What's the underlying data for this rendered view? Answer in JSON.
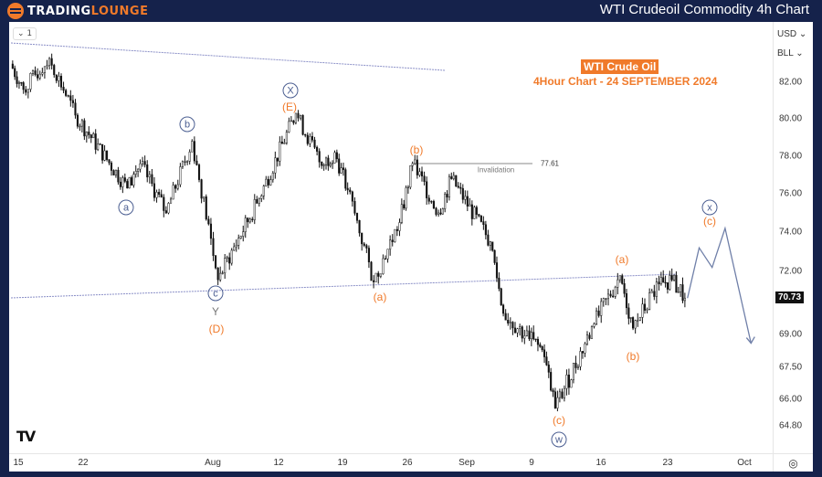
{
  "header": {
    "brand_part1": "TRADING",
    "brand_part2": "LOUNGE",
    "title": "WTI Crudeoil Commodity 4h Chart"
  },
  "toolbar": {
    "interval": "1",
    "currency": "USD",
    "unit": "BLL",
    "settings_icon": "gear-icon"
  },
  "chart_data": {
    "type": "candlestick",
    "title": "WTI Crude Oil",
    "subtitle": "4Hour Chart - 24 SEPTEMBER 2024",
    "last_price": "70.73",
    "y_ticks": [
      "82.00",
      "80.00",
      "78.00",
      "76.00",
      "74.00",
      "72.00",
      "69.00",
      "67.50",
      "66.00",
      "64.80"
    ],
    "x_ticks": [
      "15",
      "22",
      "Aug",
      "12",
      "19",
      "26",
      "Sep",
      "9",
      "16",
      "23",
      "Oct"
    ],
    "price_path_pivots": [
      {
        "date": "2024-07-12",
        "price": 83.0
      },
      {
        "date": "2024-07-15",
        "price": 81.6
      },
      {
        "date": "2024-07-17",
        "price": 83.3
      },
      {
        "date": "2024-07-19",
        "price": 80.2
      },
      {
        "date": "2024-07-25",
        "price": 76.3
      },
      {
        "date": "2024-07-26",
        "price": 77.6
      },
      {
        "date": "2024-07-30",
        "price": 75.0
      },
      {
        "date": "2024-08-01",
        "price": 78.8
      },
      {
        "date": "2024-08-05",
        "price": 71.6
      },
      {
        "date": "2024-08-08",
        "price": 75.5
      },
      {
        "date": "2024-08-13",
        "price": 80.3
      },
      {
        "date": "2024-08-15",
        "price": 77.5
      },
      {
        "date": "2024-08-16",
        "price": 78.2
      },
      {
        "date": "2024-08-19",
        "price": 76.2
      },
      {
        "date": "2024-08-21",
        "price": 71.5
      },
      {
        "date": "2024-08-23",
        "price": 74.5
      },
      {
        "date": "2024-08-26",
        "price": 77.61
      },
      {
        "date": "2024-08-28",
        "price": 75.0
      },
      {
        "date": "2024-08-29",
        "price": 76.8
      },
      {
        "date": "2024-09-03",
        "price": 73.5
      },
      {
        "date": "2024-09-04",
        "price": 70.0
      },
      {
        "date": "2024-09-06",
        "price": 68.8
      },
      {
        "date": "2024-09-09",
        "price": 68.3
      },
      {
        "date": "2024-09-10",
        "price": 65.6
      },
      {
        "date": "2024-09-13",
        "price": 69.5
      },
      {
        "date": "2024-09-17",
        "price": 71.8
      },
      {
        "date": "2024-09-18",
        "price": 69.3
      },
      {
        "date": "2024-09-20",
        "price": 71.4
      },
      {
        "date": "2024-09-23",
        "price": 71.6
      },
      {
        "date": "2024-09-24",
        "price": 70.73
      }
    ],
    "projection": [
      {
        "date": "2024-09-24",
        "price": 70.73
      },
      {
        "date": "2024-09-25",
        "price": 73.2
      },
      {
        "date": "2024-09-26",
        "price": 72.2
      },
      {
        "date": "2024-09-27",
        "price": 74.2
      },
      {
        "date": "2024-10-01",
        "price": 68.6
      }
    ],
    "invalidation": {
      "label": "Invalidation",
      "price": "77.61"
    },
    "wave_labels": [
      "X",
      "(E)",
      "b",
      "a",
      "c",
      "Y",
      "(D)",
      "(b)",
      "(a)",
      "(a)",
      "(b)",
      "(c)",
      "w",
      "x",
      "(c)"
    ],
    "colors": {
      "bull_bear": "#111111",
      "orange": "#f07a2a",
      "wave_blue": "#4b5e91",
      "trendline": "#8a8fc7"
    }
  }
}
